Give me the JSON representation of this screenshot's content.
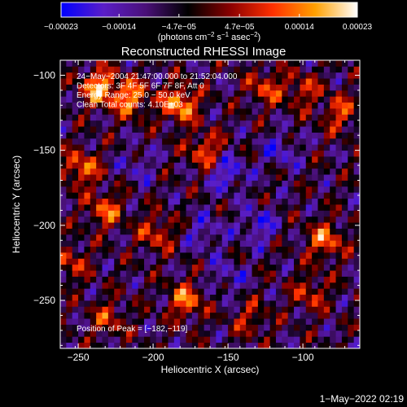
{
  "chart_data": {
    "type": "heatmap",
    "title": "Reconstructed RHESSI Image",
    "xlabel": "Heliocentric X (arcsec)",
    "ylabel": "Heliocentric Y (arcsec)",
    "xlim": [
      -262,
      -62
    ],
    "ylim": [
      -282,
      -90
    ],
    "x_ticks": [
      -250,
      -200,
      -150,
      -100
    ],
    "y_ticks": [
      -100,
      -150,
      -200,
      -250
    ],
    "x_tick_labels": [
      "−250",
      "−200",
      "−150",
      "−100"
    ],
    "y_tick_labels": [
      "−100",
      "−150",
      "−200",
      "−250"
    ],
    "colorbar": {
      "range": [
        -0.00023,
        0.00023
      ],
      "ticks": [
        -0.00023,
        -0.00014,
        -4.7e-05,
        4.7e-05,
        0.00014,
        0.00023
      ],
      "tick_labels": [
        "−0.00023",
        "−0.00014",
        "−4.7e−05",
        "4.7e−05",
        "0.00014",
        "0.00023"
      ],
      "units": {
        "prefix": "(photons cm",
        "exp1": "−2",
        "mid1": " s",
        "exp2": "−1",
        "mid2": " asec",
        "exp3": "−2",
        "suffix": ")"
      },
      "colors": [
        "#0000ff",
        "#5a1ec8",
        "#4a1078",
        "#000000",
        "#8a0000",
        "#ff3000",
        "#ffa000",
        "#ffffff"
      ]
    },
    "annotations": [
      "24−May−2004 21:47:00.000 to 21:52:04.000",
      "Detectors: 3F 4F 5F 6F 7F 8F, Att 0",
      "Energy Range: 25.0 − 50.0 keV",
      "Clean      Total counts: 4.10E+03"
    ],
    "peak_label": "Position of Peak = [−182,−119]",
    "peak": [
      -182,
      -119
    ],
    "bright_regions": [
      {
        "x": -236,
        "y": -108,
        "value": 0.00023
      },
      {
        "x": -215,
        "y": -115,
        "value": 0.0002
      },
      {
        "x": -182,
        "y": -119,
        "value": 0.00023
      },
      {
        "x": -165,
        "y": -150,
        "value": 0.00016
      },
      {
        "x": -248,
        "y": -162,
        "value": 0.00018
      },
      {
        "x": -232,
        "y": -190,
        "value": 0.00016
      },
      {
        "x": -198,
        "y": -205,
        "value": 0.00014
      },
      {
        "x": -178,
        "y": -250,
        "value": 0.00018
      },
      {
        "x": -255,
        "y": -225,
        "value": 0.00012
      },
      {
        "x": -125,
        "y": -108,
        "value": 0.00014
      },
      {
        "x": -100,
        "y": -110,
        "value": 0.00012
      },
      {
        "x": -75,
        "y": -125,
        "value": 0.00014
      },
      {
        "x": -85,
        "y": -210,
        "value": 0.00018
      },
      {
        "x": -95,
        "y": -245,
        "value": 0.00012
      },
      {
        "x": -135,
        "y": -262,
        "value": 0.0001
      },
      {
        "x": -230,
        "y": -262,
        "value": 0.00012
      }
    ],
    "dark_regions": [
      {
        "x": -150,
        "y": -165,
        "value": -0.00014
      },
      {
        "x": -130,
        "y": -200,
        "value": -0.00012
      },
      {
        "x": -165,
        "y": -205,
        "value": -0.0001
      },
      {
        "x": -115,
        "y": -150,
        "value": -0.0001
      },
      {
        "x": -210,
        "y": -160,
        "value": -8e-05
      },
      {
        "x": -150,
        "y": -235,
        "value": -9e-05
      }
    ],
    "grid": false,
    "legend": "colorbar top"
  },
  "footer": {
    "timestamp": "1−May−2022 02:19"
  }
}
